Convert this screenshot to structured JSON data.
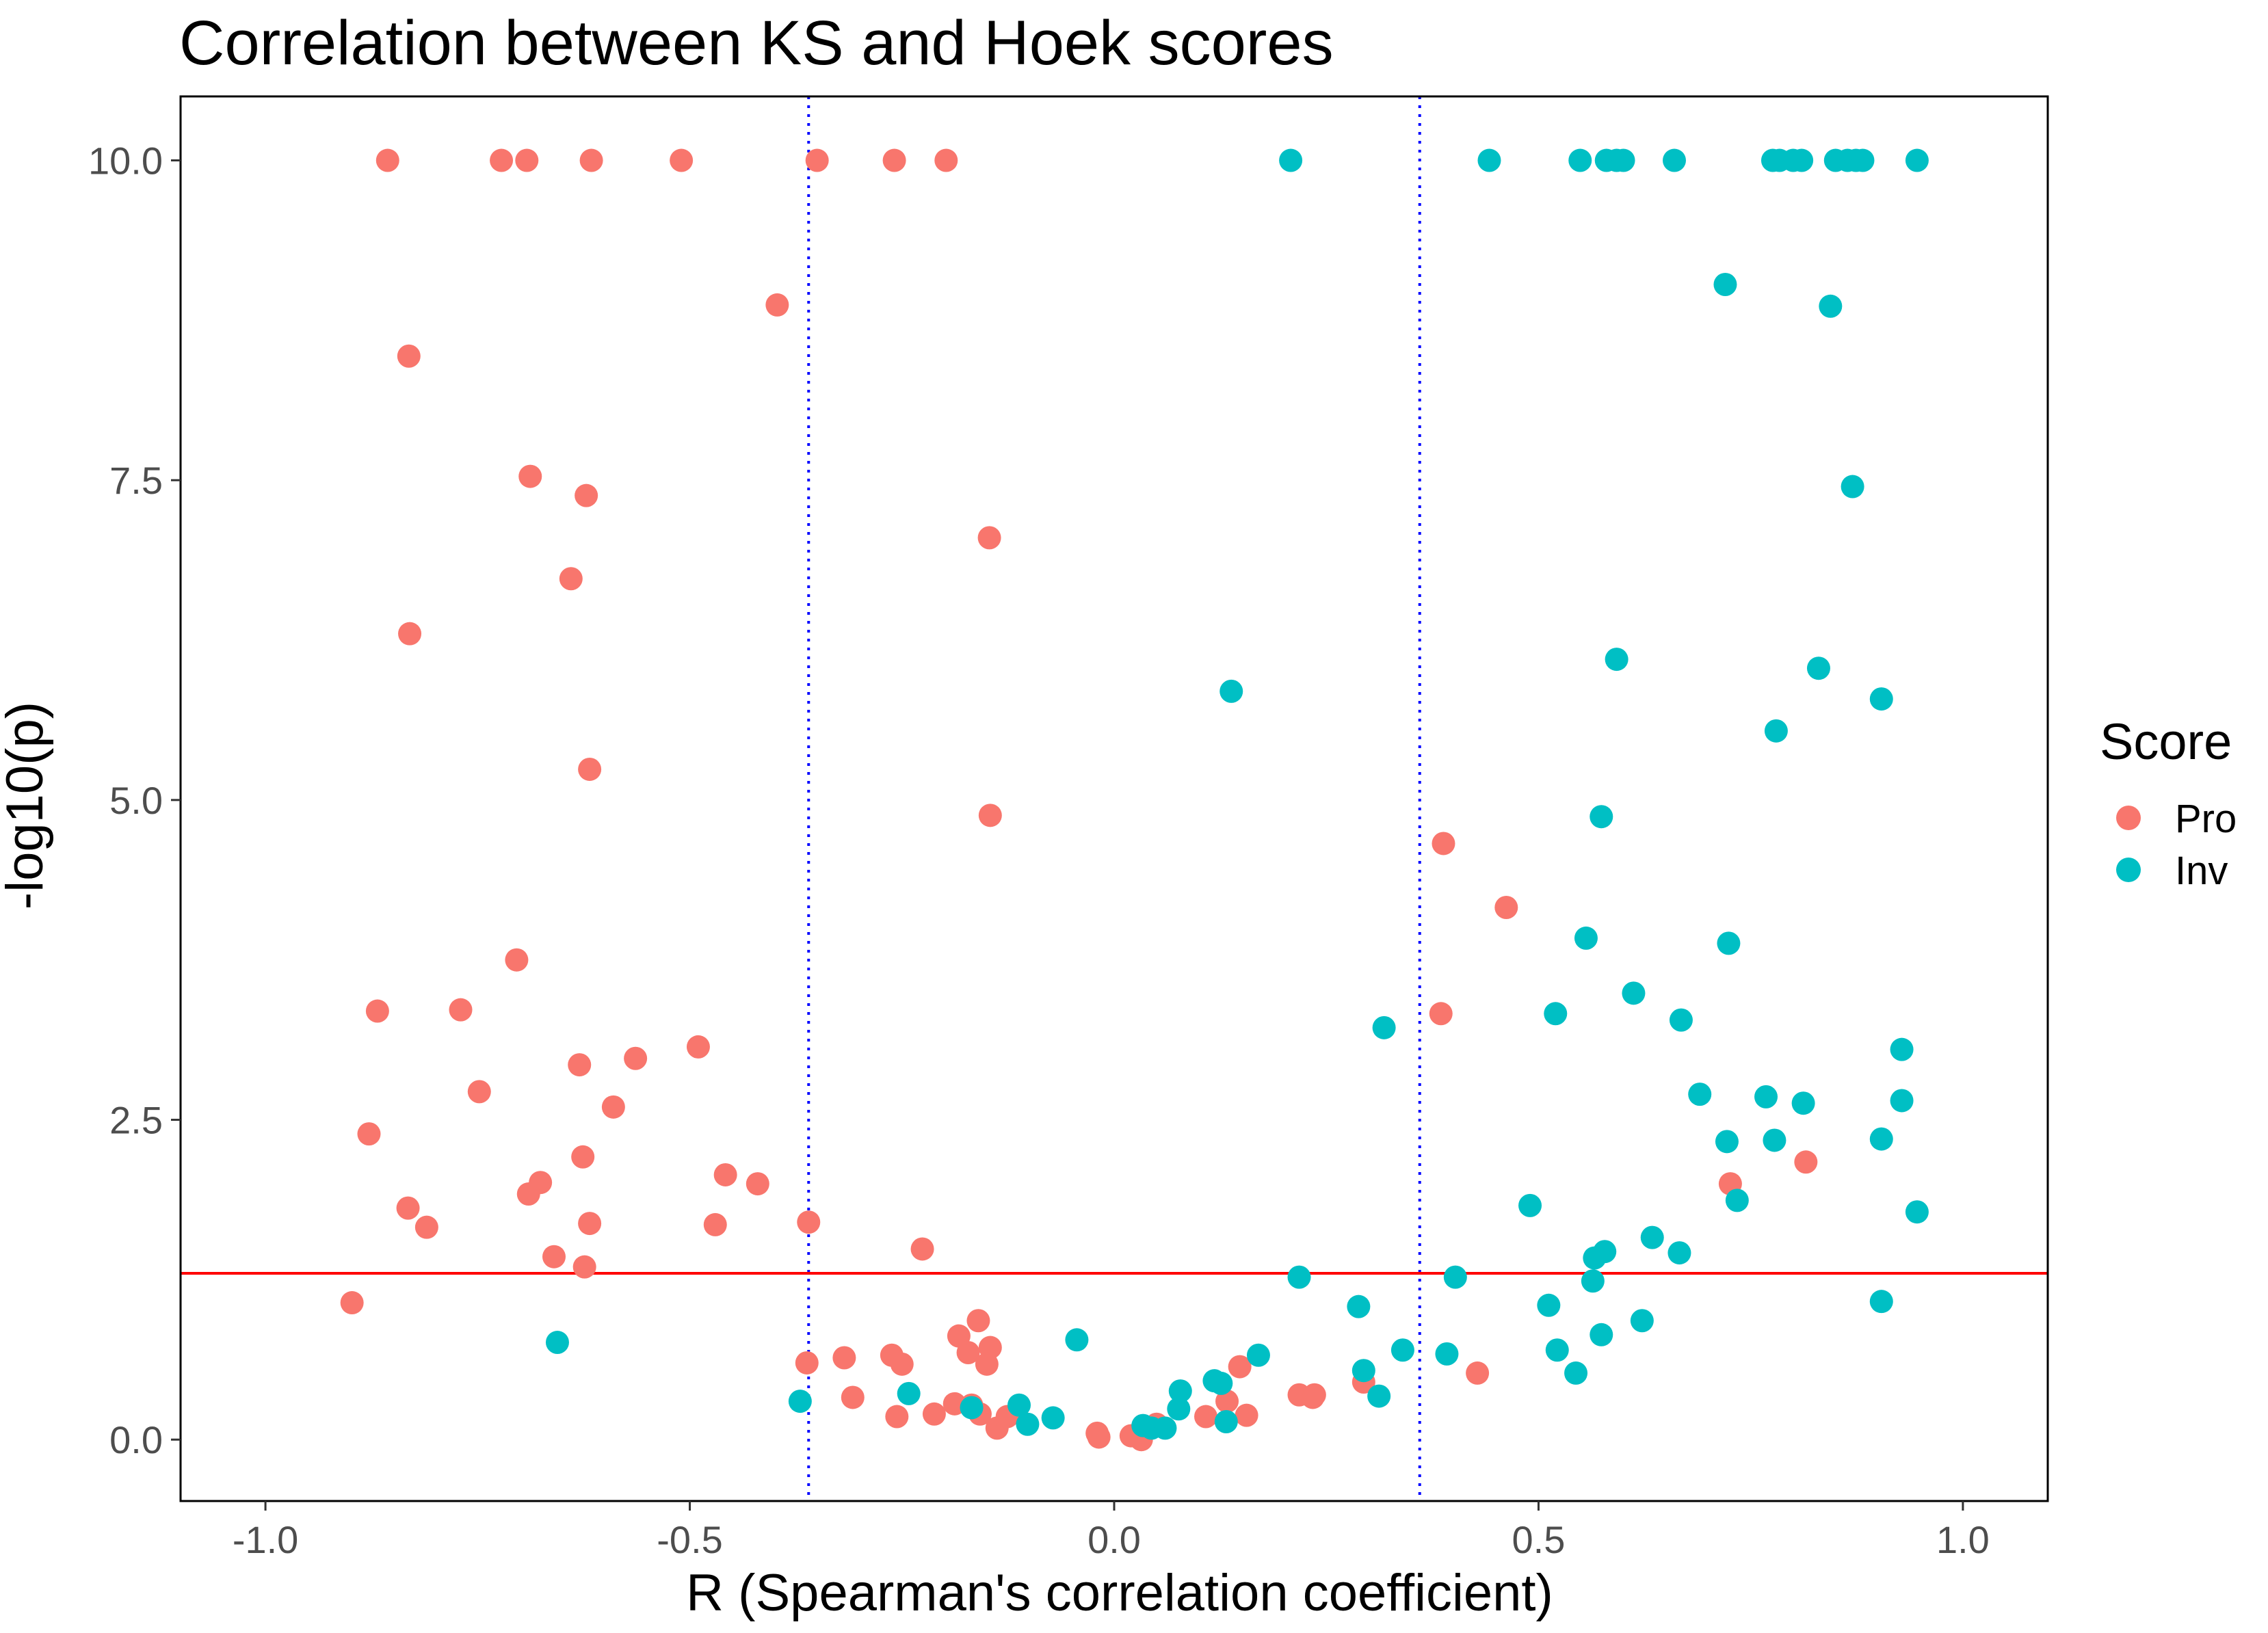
{
  "chart_data": {
    "type": "scatter",
    "title": "Correlation between KS and Hoek scores",
    "xlabel": "R (Spearman's correlation coefficient)",
    "ylabel": "-log10(p)",
    "xlim": [
      -1.1,
      1.1
    ],
    "ylim": [
      -0.48,
      10.5
    ],
    "xticks": [
      -1.0,
      -0.5,
      0.0,
      0.5,
      1.0
    ],
    "xtick_labels": [
      "-1.0",
      "-0.5",
      "0.0",
      "0.5",
      "1.0"
    ],
    "yticks": [
      0,
      2.5,
      5.0,
      7.5,
      10.0
    ],
    "ytick_labels": [
      "0.0",
      "2.5",
      "5.0",
      "7.5",
      "10.0"
    ],
    "grid": false,
    "legend": {
      "title": "Score",
      "position": "right"
    },
    "reference_lines": [
      {
        "orientation": "vertical",
        "value": -0.36,
        "style": "dotted",
        "color": "#0000ff"
      },
      {
        "orientation": "vertical",
        "value": 0.36,
        "style": "dotted",
        "color": "#0000ff"
      },
      {
        "orientation": "horizontal",
        "value": 1.3,
        "style": "solid",
        "color": "#ff0000"
      }
    ],
    "series": [
      {
        "name": "Pro",
        "color": "#f8766d",
        "points": [
          [
            -0.856,
            10.0
          ],
          [
            -0.722,
            10.0
          ],
          [
            -0.692,
            10.0
          ],
          [
            -0.616,
            10.0
          ],
          [
            -0.51,
            10.0
          ],
          [
            -0.35,
            10.0
          ],
          [
            -0.259,
            10.0
          ],
          [
            -0.198,
            10.0
          ],
          [
            -0.397,
            8.87
          ],
          [
            -0.831,
            8.47
          ],
          [
            -0.688,
            7.53
          ],
          [
            -0.622,
            7.38
          ],
          [
            -0.147,
            7.05
          ],
          [
            -0.64,
            6.73
          ],
          [
            -0.83,
            6.3
          ],
          [
            -0.618,
            5.24
          ],
          [
            -0.146,
            4.88
          ],
          [
            -0.704,
            3.75
          ],
          [
            -0.868,
            3.35
          ],
          [
            -0.77,
            3.36
          ],
          [
            -0.49,
            3.07
          ],
          [
            -0.63,
            2.93
          ],
          [
            -0.564,
            2.98
          ],
          [
            -0.748,
            2.72
          ],
          [
            -0.59,
            2.6
          ],
          [
            -0.878,
            2.39
          ],
          [
            -0.626,
            2.21
          ],
          [
            -0.458,
            2.07
          ],
          [
            -0.42,
            2.0
          ],
          [
            -0.676,
            2.01
          ],
          [
            -0.69,
            1.92
          ],
          [
            -0.832,
            1.81
          ],
          [
            -0.81,
            1.66
          ],
          [
            -0.618,
            1.69
          ],
          [
            -0.47,
            1.68
          ],
          [
            -0.36,
            1.7
          ],
          [
            -0.226,
            1.49
          ],
          [
            -0.66,
            1.43
          ],
          [
            -0.624,
            1.35
          ],
          [
            -0.898,
            1.07
          ],
          [
            -0.362,
            0.6
          ],
          [
            -0.318,
            0.64
          ],
          [
            -0.262,
            0.66
          ],
          [
            -0.25,
            0.59
          ],
          [
            -0.183,
            0.81
          ],
          [
            -0.16,
            0.93
          ],
          [
            -0.146,
            0.72
          ],
          [
            -0.172,
            0.68
          ],
          [
            -0.15,
            0.59
          ],
          [
            -0.308,
            0.33
          ],
          [
            -0.256,
            0.18
          ],
          [
            -0.212,
            0.2
          ],
          [
            -0.188,
            0.28
          ],
          [
            -0.168,
            0.27
          ],
          [
            -0.158,
            0.2
          ],
          [
            -0.138,
            0.09
          ],
          [
            -0.126,
            0.18
          ],
          [
            -0.02,
            0.05
          ],
          [
            -0.018,
            0.02
          ],
          [
            0.02,
            0.03
          ],
          [
            0.032,
            0.0
          ],
          [
            0.05,
            0.12
          ],
          [
            0.108,
            0.18
          ],
          [
            0.133,
            0.3
          ],
          [
            0.148,
            0.57
          ],
          [
            0.156,
            0.19
          ],
          [
            0.218,
            0.35
          ],
          [
            0.234,
            0.33
          ],
          [
            0.236,
            0.35
          ],
          [
            0.294,
            0.45
          ],
          [
            0.385,
            3.33
          ],
          [
            0.388,
            4.66
          ],
          [
            0.428,
            0.52
          ],
          [
            0.462,
            4.16
          ],
          [
            0.726,
            2.0
          ],
          [
            0.815,
            2.17
          ]
        ]
      },
      {
        "name": "Inv",
        "color": "#00bfc4",
        "points": [
          [
            0.208,
            10.0
          ],
          [
            0.442,
            10.0
          ],
          [
            0.549,
            10.0
          ],
          [
            0.58,
            10.0
          ],
          [
            0.592,
            10.0
          ],
          [
            0.6,
            10.0
          ],
          [
            0.66,
            10.0
          ],
          [
            0.776,
            10.0
          ],
          [
            0.784,
            10.0
          ],
          [
            0.8,
            10.0
          ],
          [
            0.81,
            10.0
          ],
          [
            0.85,
            10.0
          ],
          [
            0.864,
            10.0
          ],
          [
            0.874,
            10.0
          ],
          [
            0.882,
            10.0
          ],
          [
            0.946,
            10.0
          ],
          [
            0.72,
            9.03
          ],
          [
            0.844,
            8.86
          ],
          [
            0.87,
            7.45
          ],
          [
            0.592,
            6.1
          ],
          [
            0.83,
            6.03
          ],
          [
            0.138,
            5.85
          ],
          [
            0.904,
            5.79
          ],
          [
            0.78,
            5.54
          ],
          [
            0.574,
            4.87
          ],
          [
            0.556,
            3.92
          ],
          [
            0.724,
            3.88
          ],
          [
            0.612,
            3.49
          ],
          [
            0.52,
            3.33
          ],
          [
            0.668,
            3.28
          ],
          [
            0.318,
            3.22
          ],
          [
            0.928,
            3.05
          ],
          [
            0.69,
            2.7
          ],
          [
            0.768,
            2.68
          ],
          [
            0.812,
            2.63
          ],
          [
            0.928,
            2.65
          ],
          [
            0.722,
            2.33
          ],
          [
            0.778,
            2.34
          ],
          [
            0.904,
            2.35
          ],
          [
            0.734,
            1.87
          ],
          [
            0.49,
            1.83
          ],
          [
            0.946,
            1.78
          ],
          [
            0.634,
            1.58
          ],
          [
            0.578,
            1.47
          ],
          [
            0.566,
            1.42
          ],
          [
            0.666,
            1.46
          ],
          [
            0.218,
            1.27
          ],
          [
            0.402,
            1.27
          ],
          [
            0.564,
            1.24
          ],
          [
            0.512,
            1.05
          ],
          [
            0.904,
            1.08
          ],
          [
            0.288,
            1.04
          ],
          [
            0.622,
            0.93
          ],
          [
            0.574,
            0.82
          ],
          [
            0.522,
            0.7
          ],
          [
            0.544,
            0.52
          ],
          [
            0.34,
            0.7
          ],
          [
            0.392,
            0.67
          ],
          [
            0.294,
            0.54
          ],
          [
            0.312,
            0.34
          ],
          [
            0.17,
            0.66
          ],
          [
            0.118,
            0.46
          ],
          [
            0.126,
            0.44
          ],
          [
            0.078,
            0.38
          ],
          [
            0.076,
            0.24
          ],
          [
            0.132,
            0.14
          ],
          [
            0.06,
            0.09
          ],
          [
            0.044,
            0.09
          ],
          [
            0.034,
            0.11
          ],
          [
            -0.044,
            0.78
          ],
          [
            -0.072,
            0.17
          ],
          [
            -0.102,
            0.12
          ],
          [
            -0.112,
            0.27
          ],
          [
            -0.168,
            0.25
          ],
          [
            -0.242,
            0.36
          ],
          [
            -0.37,
            0.3
          ],
          [
            -0.656,
            0.76
          ]
        ]
      }
    ]
  }
}
